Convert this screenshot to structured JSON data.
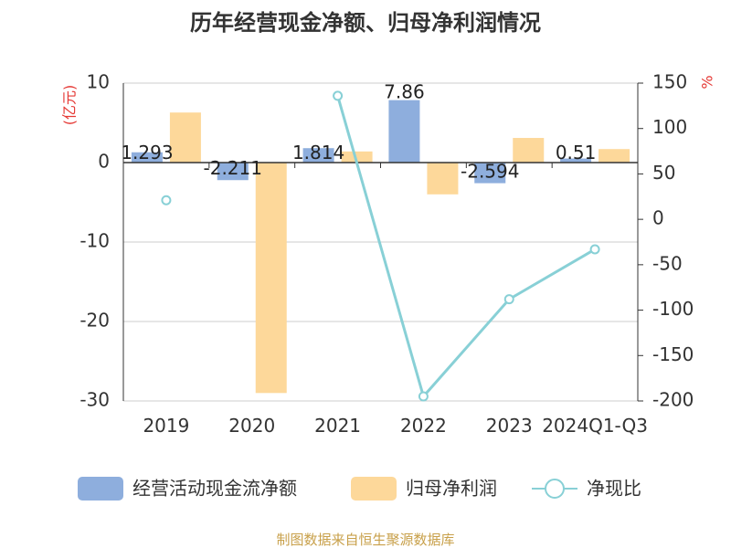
{
  "chart_data": {
    "type": "bar",
    "title": "历年经营现金净额、归母净利润情况",
    "categories": [
      "2019",
      "2020",
      "2021",
      "2022",
      "2023",
      "2024Q1-Q3"
    ],
    "left_unit": "(亿元)",
    "right_unit": "%",
    "left_ylim": [
      -30,
      10
    ],
    "right_ylim": [
      -200,
      150
    ],
    "left_ticks": [
      "10",
      "0",
      "-10",
      "-20",
      "-30"
    ],
    "right_ticks": [
      "150",
      "100",
      "50",
      "0",
      "-50",
      "-100",
      "-150",
      "-200"
    ],
    "series": [
      {
        "name": "经营活动现金流净额",
        "type": "bar",
        "axis": "left",
        "color": "#8eaedd",
        "values": [
          1.293,
          -2.211,
          1.814,
          7.86,
          -2.594,
          0.51
        ],
        "labels": [
          "1.293",
          "-2.211",
          "1.814",
          "7.86",
          "-2.594",
          "0.51"
        ]
      },
      {
        "name": "归母净利润",
        "type": "bar",
        "axis": "left",
        "color": "#fdd89a",
        "values": [
          6.3,
          -29.0,
          1.4,
          -4.0,
          3.1,
          1.7
        ]
      },
      {
        "name": "净现比",
        "type": "line",
        "axis": "right",
        "color": "#88d0d6",
        "values": [
          21,
          null,
          136,
          -195,
          -88,
          -33
        ]
      }
    ],
    "grid": true,
    "legend_position": "bottom"
  },
  "footer": {
    "source": "制图数据来自恒生聚源数据库"
  }
}
